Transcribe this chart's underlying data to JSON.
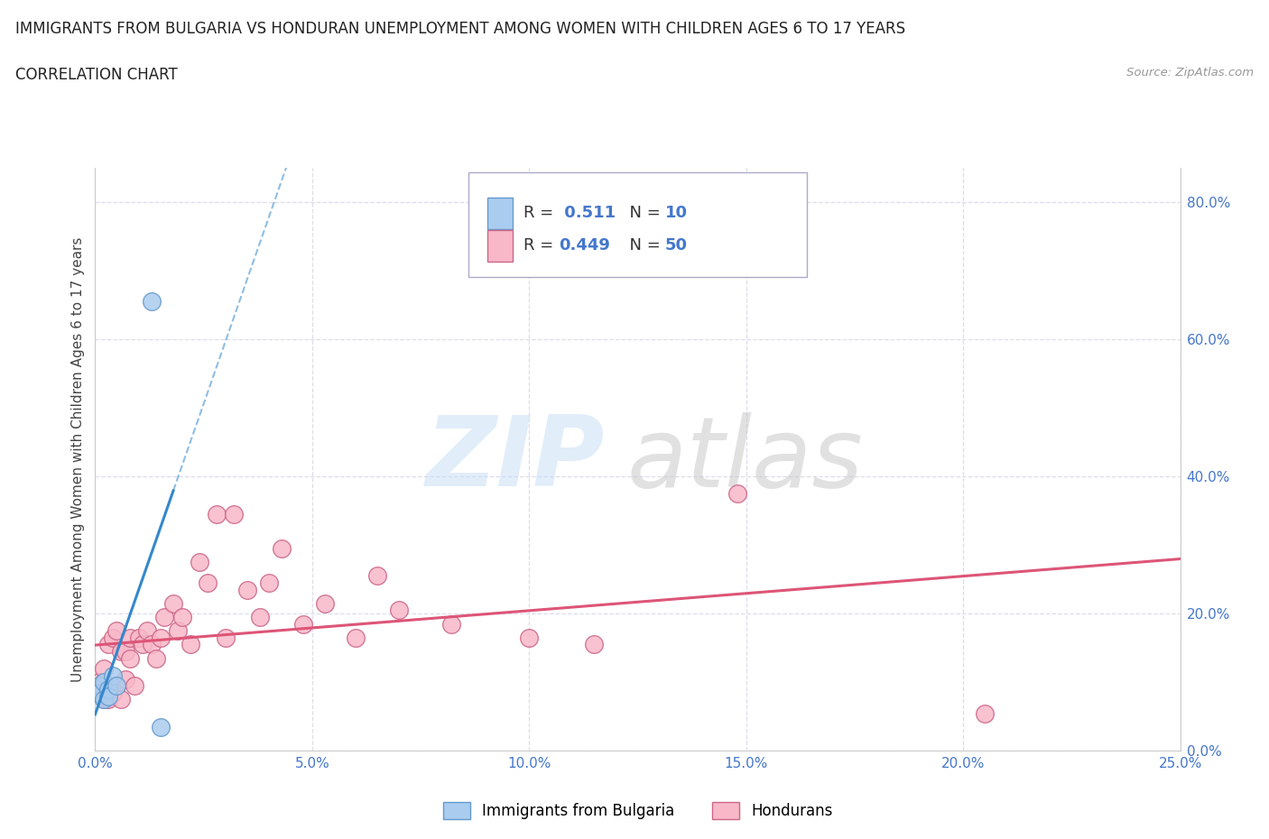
{
  "title": "IMMIGRANTS FROM BULGARIA VS HONDURAN UNEMPLOYMENT AMONG WOMEN WITH CHILDREN AGES 6 TO 17 YEARS",
  "subtitle": "CORRELATION CHART",
  "source": "Source: ZipAtlas.com",
  "xlabel_bottom": "Immigrants from Bulgaria",
  "ylabel": "Unemployment Among Women with Children Ages 6 to 17 years",
  "xlim": [
    0.0,
    0.25
  ],
  "ylim": [
    0.0,
    0.85
  ],
  "right_yticks": [
    0.0,
    0.2,
    0.4,
    0.6,
    0.8
  ],
  "right_yticklabels": [
    "0.0%",
    "20.0%",
    "40.0%",
    "60.0%",
    "80.0%"
  ],
  "xticks": [
    0.0,
    0.05,
    0.1,
    0.15,
    0.2,
    0.25
  ],
  "xticklabels": [
    "0.0%",
    "5.0%",
    "10.0%",
    "15.0%",
    "20.0%",
    "25.0%"
  ],
  "bg_color": "#ffffff",
  "grid_color": "#ddddee",
  "bulgaria_color": "#aaccee",
  "bulgaria_edge_color": "#6699cc",
  "honduras_color": "#f8b8c8",
  "honduras_edge_color": "#cc6688",
  "r_bulgaria": 0.511,
  "n_bulgaria": 10,
  "r_honduras": 0.449,
  "n_honduras": 50,
  "legend_color": "#4477cc",
  "bulgaria_line_color": "#3388cc",
  "honduras_line_color": "#dd5577",
  "bulgaria_scatter_x": [
    0.001,
    0.001,
    0.002,
    0.002,
    0.003,
    0.003,
    0.004,
    0.005,
    0.013,
    0.015
  ],
  "bulgaria_scatter_y": [
    0.095,
    0.085,
    0.1,
    0.075,
    0.09,
    0.08,
    0.11,
    0.095,
    0.655,
    0.035
  ],
  "honduras_scatter_x": [
    0.001,
    0.001,
    0.001,
    0.002,
    0.002,
    0.002,
    0.003,
    0.003,
    0.003,
    0.004,
    0.004,
    0.005,
    0.005,
    0.006,
    0.006,
    0.007,
    0.007,
    0.008,
    0.008,
    0.009,
    0.01,
    0.011,
    0.012,
    0.013,
    0.014,
    0.015,
    0.016,
    0.018,
    0.019,
    0.02,
    0.022,
    0.024,
    0.026,
    0.028,
    0.03,
    0.032,
    0.035,
    0.038,
    0.04,
    0.043,
    0.048,
    0.053,
    0.06,
    0.065,
    0.07,
    0.082,
    0.1,
    0.115,
    0.148,
    0.205
  ],
  "honduras_scatter_y": [
    0.095,
    0.085,
    0.1,
    0.1,
    0.12,
    0.075,
    0.155,
    0.085,
    0.075,
    0.085,
    0.165,
    0.175,
    0.095,
    0.145,
    0.075,
    0.145,
    0.105,
    0.135,
    0.165,
    0.095,
    0.165,
    0.155,
    0.175,
    0.155,
    0.135,
    0.165,
    0.195,
    0.215,
    0.175,
    0.195,
    0.155,
    0.275,
    0.245,
    0.345,
    0.165,
    0.345,
    0.235,
    0.195,
    0.245,
    0.295,
    0.185,
    0.215,
    0.165,
    0.255,
    0.205,
    0.185,
    0.165,
    0.155,
    0.375,
    0.055
  ]
}
